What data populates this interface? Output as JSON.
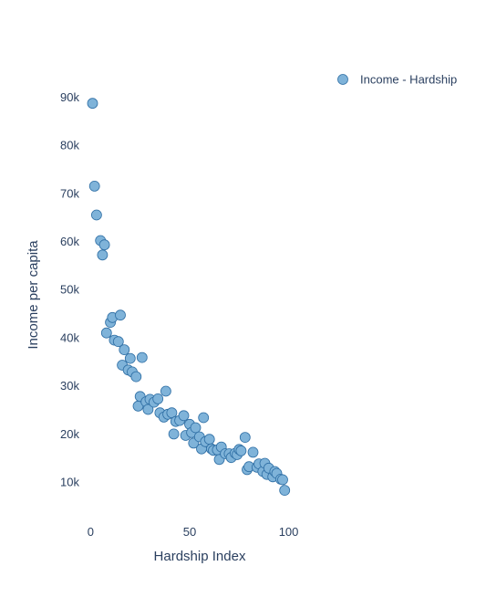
{
  "chart_data": {
    "type": "scatter",
    "title": "",
    "xlabel": "Hardship Index",
    "ylabel": "Income per capita",
    "xlim": [
      -8,
      120
    ],
    "ylim": [
      3000,
      95000
    ],
    "x_ticks": [
      0,
      50,
      100
    ],
    "x_tick_labels": [
      "0",
      "50",
      "100"
    ],
    "y_ticks": [
      10000,
      20000,
      30000,
      40000,
      50000,
      60000,
      70000,
      80000,
      90000
    ],
    "y_tick_labels": [
      "10k",
      "20k",
      "30k",
      "40k",
      "50k",
      "60k",
      "70k",
      "80k",
      "90k"
    ],
    "grid": false,
    "legend_position": "top-right",
    "series": [
      {
        "name": "Income - Hardship",
        "color": "#7fb3d9",
        "edge_color": "#2f6fa5",
        "points": [
          [
            1,
            88700
          ],
          [
            2,
            71500
          ],
          [
            3,
            65500
          ],
          [
            5,
            60200
          ],
          [
            6,
            57200
          ],
          [
            7,
            59300
          ],
          [
            8,
            41000
          ],
          [
            10,
            43200
          ],
          [
            11,
            44200
          ],
          [
            12,
            39500
          ],
          [
            14,
            39200
          ],
          [
            15,
            44700
          ],
          [
            16,
            34300
          ],
          [
            17,
            37500
          ],
          [
            19,
            33300
          ],
          [
            20,
            35700
          ],
          [
            21,
            32900
          ],
          [
            23,
            31900
          ],
          [
            24,
            25800
          ],
          [
            25,
            27800
          ],
          [
            26,
            35900
          ],
          [
            28,
            26700
          ],
          [
            29,
            25100
          ],
          [
            30,
            27200
          ],
          [
            32,
            26600
          ],
          [
            34,
            27300
          ],
          [
            35,
            24400
          ],
          [
            37,
            23500
          ],
          [
            38,
            28900
          ],
          [
            39,
            24100
          ],
          [
            41,
            24400
          ],
          [
            42,
            20000
          ],
          [
            43,
            22600
          ],
          [
            45,
            22800
          ],
          [
            47,
            23800
          ],
          [
            48,
            19700
          ],
          [
            50,
            22000
          ],
          [
            51,
            20300
          ],
          [
            52,
            18100
          ],
          [
            53,
            21300
          ],
          [
            55,
            19400
          ],
          [
            56,
            16900
          ],
          [
            57,
            23400
          ],
          [
            58,
            18400
          ],
          [
            60,
            18900
          ],
          [
            61,
            16900
          ],
          [
            62,
            16600
          ],
          [
            64,
            16700
          ],
          [
            65,
            14700
          ],
          [
            66,
            17300
          ],
          [
            68,
            15900
          ],
          [
            70,
            15900
          ],
          [
            71,
            15100
          ],
          [
            73,
            16000
          ],
          [
            74,
            15700
          ],
          [
            75,
            16800
          ],
          [
            76,
            16500
          ],
          [
            78,
            19300
          ],
          [
            79,
            12600
          ],
          [
            80,
            13200
          ],
          [
            82,
            16200
          ],
          [
            84,
            13100
          ],
          [
            85,
            13800
          ],
          [
            87,
            12200
          ],
          [
            88,
            13900
          ],
          [
            89,
            11600
          ],
          [
            90,
            12900
          ],
          [
            92,
            11100
          ],
          [
            93,
            12200
          ],
          [
            94,
            11800
          ],
          [
            96,
            10600
          ],
          [
            97,
            10500
          ],
          [
            98,
            8300
          ]
        ]
      }
    ]
  }
}
